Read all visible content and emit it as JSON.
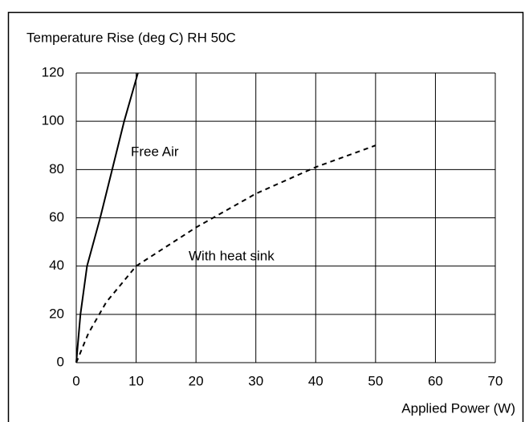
{
  "chart_data": {
    "type": "line",
    "title": "Temperature Rise (deg C)  RH 50C",
    "x_label": "Applied Power (W)",
    "series": [
      {
        "name": "Free Air",
        "color": "#000000",
        "dash": false,
        "x": [
          0,
          0.7,
          1.8,
          4,
          6,
          8,
          10.3
        ],
        "values": [
          0,
          20,
          40,
          60,
          80,
          100,
          120
        ]
      },
      {
        "name": "With heat sink",
        "color": "#000000",
        "dash": true,
        "x": [
          0,
          2,
          5,
          10,
          20,
          30,
          40,
          50
        ],
        "values": [
          0,
          12,
          25,
          40,
          56,
          70,
          81,
          90
        ]
      }
    ],
    "xlim": [
      0,
      70
    ],
    "xticks": [
      0,
      10,
      20,
      30,
      40,
      50,
      60,
      70
    ],
    "ylim": [
      0,
      120
    ],
    "yticks": [
      0,
      20,
      40,
      60,
      80,
      100,
      120
    ],
    "grid": true
  }
}
